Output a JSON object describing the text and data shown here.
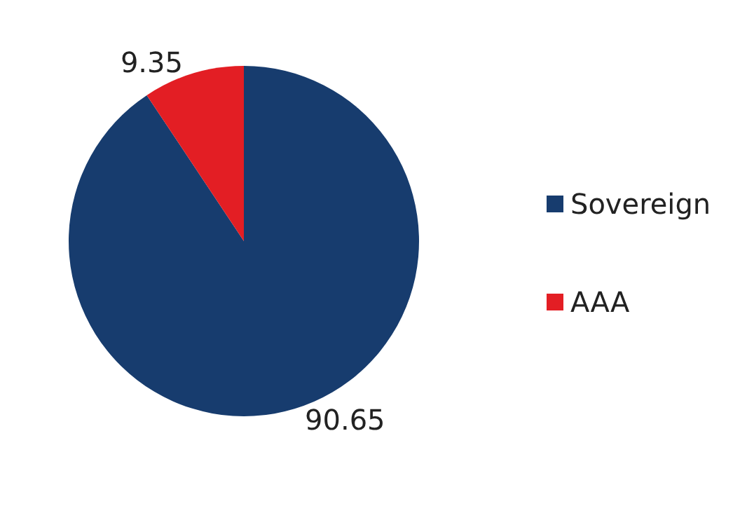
{
  "chart_data": {
    "type": "pie",
    "categories": [
      "Sovereign",
      "AAA"
    ],
    "values": [
      90.65,
      9.35
    ],
    "colors": [
      "#173c6e",
      "#e31e24"
    ],
    "data_labels": true,
    "legend": "right"
  }
}
